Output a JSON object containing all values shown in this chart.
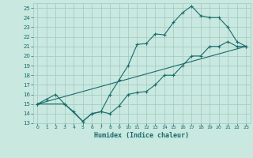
{
  "title": "",
  "xlabel": "Humidex (Indice chaleur)",
  "xlim": [
    -0.5,
    23.5
  ],
  "ylim": [
    13,
    25.5
  ],
  "xticks": [
    0,
    1,
    2,
    3,
    4,
    5,
    6,
    7,
    8,
    9,
    10,
    11,
    12,
    13,
    14,
    15,
    16,
    17,
    18,
    19,
    20,
    21,
    22,
    23
  ],
  "yticks": [
    13,
    14,
    15,
    16,
    17,
    18,
    19,
    20,
    21,
    22,
    23,
    24,
    25
  ],
  "bg_color": "#c8e8e0",
  "grid_color": "#a0c8c0",
  "line_color": "#1a6b6b",
  "line1_x": [
    0,
    1,
    2,
    3,
    4,
    5,
    6,
    7,
    8,
    9,
    10,
    11,
    12,
    13,
    14,
    15,
    16,
    17,
    18,
    19,
    20,
    21,
    22,
    23
  ],
  "line1_y": [
    15,
    15.5,
    16,
    15,
    14.2,
    13.2,
    14,
    14.2,
    16,
    17.5,
    19,
    21.2,
    21.3,
    22.3,
    22.2,
    23.5,
    24.5,
    25.2,
    24.2,
    24,
    24,
    23,
    21.5,
    21
  ],
  "line2_x": [
    0,
    3,
    5,
    6,
    7,
    8,
    9,
    10,
    11,
    12,
    13,
    14,
    15,
    16,
    17,
    18,
    19,
    20,
    21,
    22,
    23
  ],
  "line2_y": [
    15,
    15,
    13.2,
    14,
    14.2,
    14,
    14.8,
    16,
    16.2,
    16.3,
    17,
    18,
    18,
    19,
    20,
    20,
    21,
    21,
    21.5,
    21,
    21
  ],
  "line3_x": [
    0,
    23
  ],
  "line3_y": [
    15,
    21
  ]
}
